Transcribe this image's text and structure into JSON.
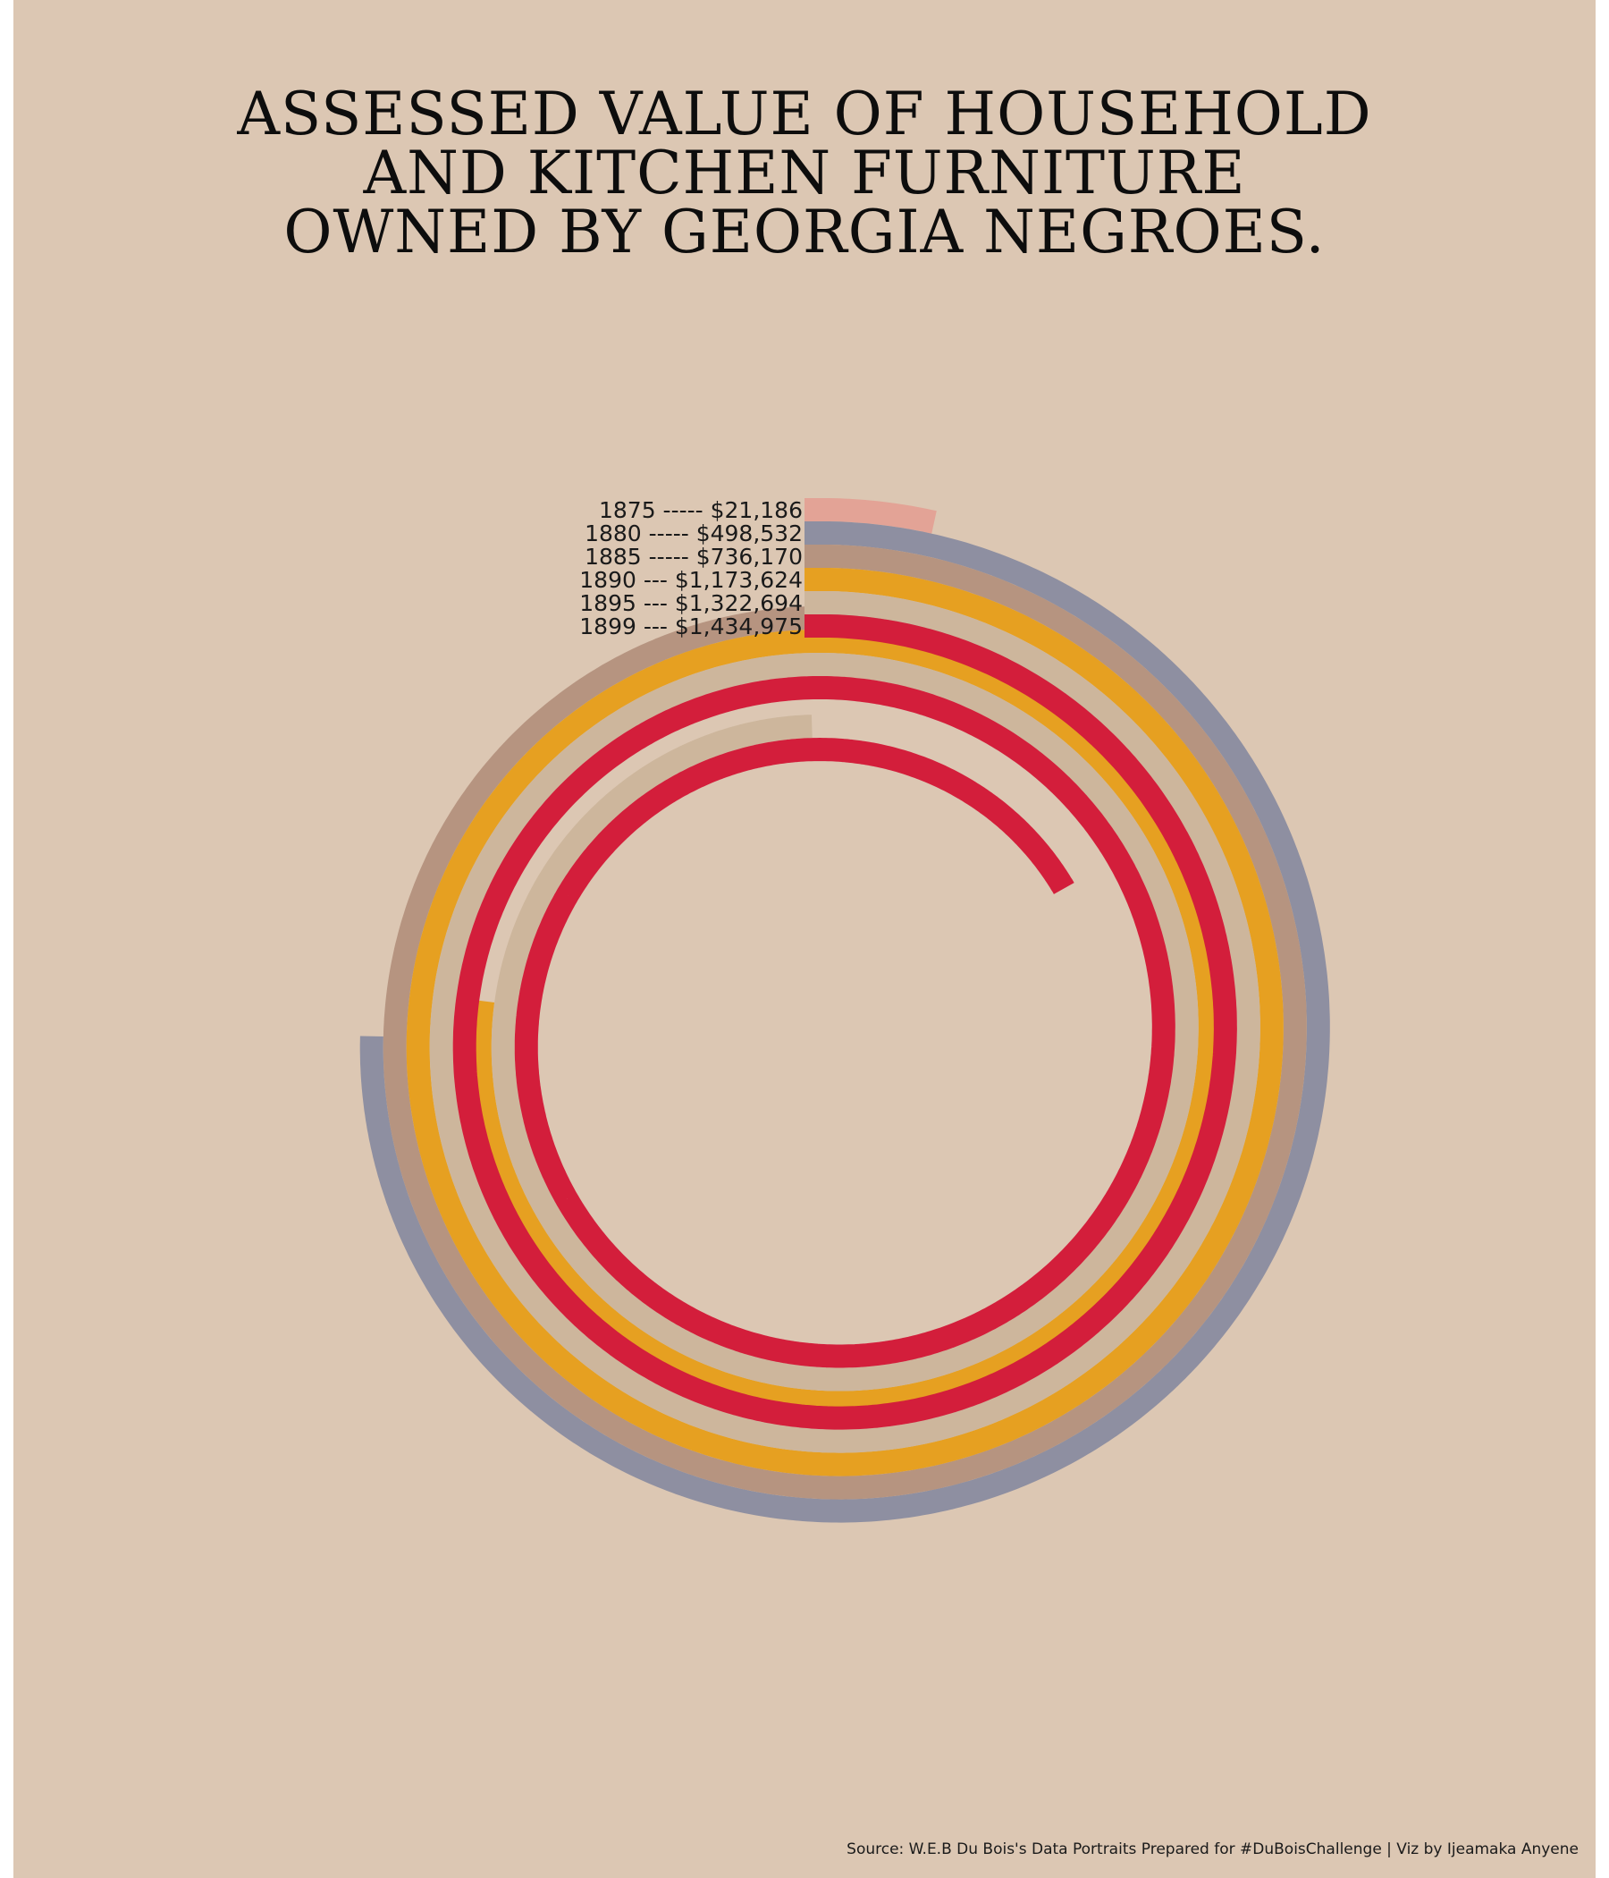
{
  "title_lines": [
    "ASSESSED VALUE OF HOUSEHOLD",
    "AND KITCHEN FURNITURE",
    "OWNED BY GEORGIA NEGROES."
  ],
  "source": "Source: W.E.B Du Bois's Data Portraits Prepared for #DuBoisChallenge | Viz by Ijeamaka Anyene",
  "colors": {
    "background": "#dcc7b3",
    "text": "#0d0d0d"
  },
  "chart_data": {
    "type": "spiral-bar",
    "title": "ASSESSED VALUE OF HOUSEHOLD AND KITCHEN FURNITURE OWNED BY GEORGIA NEGROES.",
    "legend_placement": "left of spiral start",
    "series": [
      {
        "year": "1875",
        "label": "1875 -----    $21,186",
        "value": 21186,
        "color": "#e3a396"
      },
      {
        "year": "1880",
        "label": "1880 -----  $498,532",
        "value": 498532,
        "color": "#8e8fa1"
      },
      {
        "year": "1885",
        "label": "1885 -----  $736,170",
        "value": 736170,
        "color": "#b69480"
      },
      {
        "year": "1890",
        "label": "1890 --- $1,173,624",
        "value": 1173624,
        "color": "#e6a021"
      },
      {
        "year": "1895",
        "label": "1895 --- $1,322,694",
        "value": 1322694,
        "color": "#cdb69c"
      },
      {
        "year": "1899",
        "label": "1899 --- $1,434,975",
        "value": 1434975,
        "color": "#d31e3b"
      }
    ]
  }
}
